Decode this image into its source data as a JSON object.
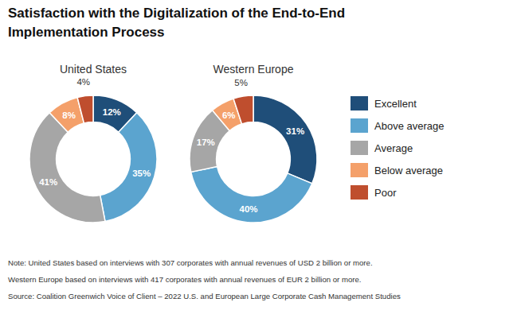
{
  "title": [
    "Satisfaction with the Digitalization of the End-to-End",
    "Implementation Process"
  ],
  "annotations": [
    "Note: United States based on interviews with 307 corporates with annual revenues of USD 2 billion or more.",
    "Western Europe based on interviews with 417 corporates with annual revenues of EUR 2 billion or more.",
    "Source: Coalition Greenwich Voice of Client – 2022 U.S. and European Large Corporate Cash Management Studies"
  ],
  "chart_data": [
    {
      "type": "pie",
      "title": "United States",
      "categories": [
        "Excellent",
        "Above average",
        "Average",
        "Below average",
        "Poor"
      ],
      "values": [
        12,
        35,
        41,
        8,
        4
      ],
      "value_labels": [
        "12%",
        "35%",
        "41%",
        "8%",
        "4%"
      ],
      "colors": [
        "#1f4e79",
        "#5ba4cf",
        "#a6a6a6",
        "#f4a06a",
        "#bf4e2e"
      ],
      "data_labels": true,
      "legend": "right"
    },
    {
      "type": "pie",
      "title": "Western Europe",
      "categories": [
        "Excellent",
        "Above average",
        "Average",
        "Below average",
        "Poor"
      ],
      "values": [
        31,
        40,
        17,
        6,
        5
      ],
      "value_labels": [
        "31%",
        "40%",
        "17%",
        "6%",
        "5%"
      ],
      "colors": [
        "#1f4e79",
        "#5ba4cf",
        "#a6a6a6",
        "#f4a06a",
        "#bf4e2e"
      ],
      "data_labels": true
    }
  ]
}
